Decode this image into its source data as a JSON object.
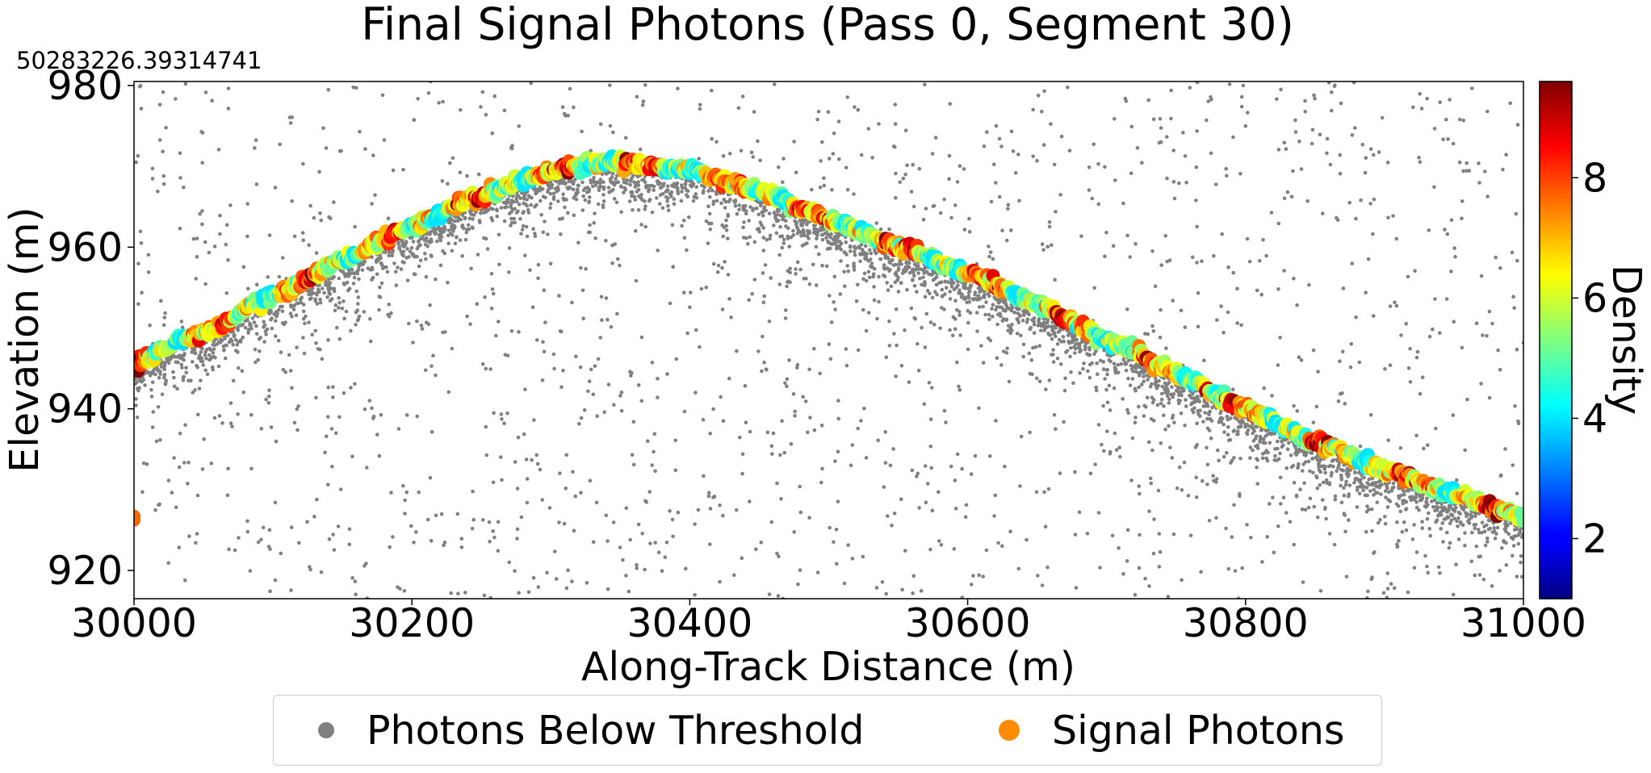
{
  "chart_data": {
    "type": "scatter",
    "title": "Final Signal Photons (Pass 0, Segment 30)",
    "xlabel": "Along-Track Distance (m)",
    "ylabel": "Elevation (m)",
    "offset_text": "50283226.39314741",
    "xlim": [
      30000,
      31000
    ],
    "ylim": [
      916.5,
      980.5
    ],
    "xticks": [
      30000,
      30200,
      30400,
      30600,
      30800,
      31000
    ],
    "yticks": [
      920,
      940,
      960,
      980
    ],
    "grid": false,
    "legend_placement": "bottom-center, below plot",
    "colorbar": {
      "label": "Density",
      "colormap": "jet",
      "range": [
        1,
        9.6
      ],
      "ticks": [
        2,
        4,
        6,
        8
      ]
    },
    "series": [
      {
        "name": "Photons Below Threshold",
        "color": "#808080",
        "description_points": "scattered noise photons concentrated just below the ground surface, with sparse background noise across the full elevation range"
      },
      {
        "name": "Signal Photons",
        "color": "#ff8c00",
        "surface_profile": {
          "x": [
            30000,
            30050,
            30100,
            30150,
            30200,
            30250,
            30300,
            30325,
            30350,
            30400,
            30450,
            30500,
            30550,
            30600,
            30650,
            30700,
            30750,
            30800,
            30850,
            30900,
            30950,
            31000
          ],
          "y": [
            945.5,
            949.5,
            954,
            958.5,
            962.5,
            966.5,
            969.5,
            970.3,
            970.5,
            969.5,
            967,
            963.5,
            960,
            957,
            953,
            948.5,
            944.5,
            940,
            936,
            932.5,
            929.5,
            926.5
          ]
        },
        "density_range": [
          4,
          9.6
        ]
      }
    ]
  }
}
